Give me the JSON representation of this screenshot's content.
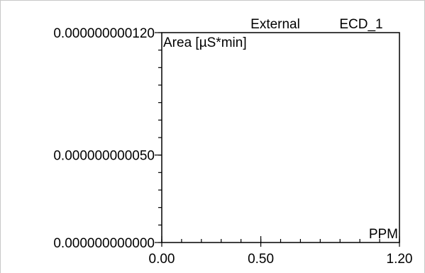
{
  "chart_data": {
    "type": "scatter",
    "title_parts": [
      "External",
      "ECD_1"
    ],
    "ylabel": "Area  [µS*min]",
    "xlabel": "PPM",
    "xlim": [
      0.0,
      1.2
    ],
    "ylim": [
      0.0,
      1.2e-10
    ],
    "x_ticks": [
      {
        "value": 0.0,
        "label": "0.00"
      },
      {
        "value": 0.5,
        "label": "0.50"
      },
      {
        "value": 1.2,
        "label": "1.20"
      }
    ],
    "y_ticks": [
      {
        "value": 0.0,
        "label": "0.000000000000"
      },
      {
        "value": 5e-11,
        "label": "0.000000000050"
      },
      {
        "value": 1.2e-10,
        "label": "0.000000000120"
      }
    ],
    "x_minor_step": 0.1,
    "y_minor_step": 1e-11,
    "grid": false,
    "series": []
  }
}
